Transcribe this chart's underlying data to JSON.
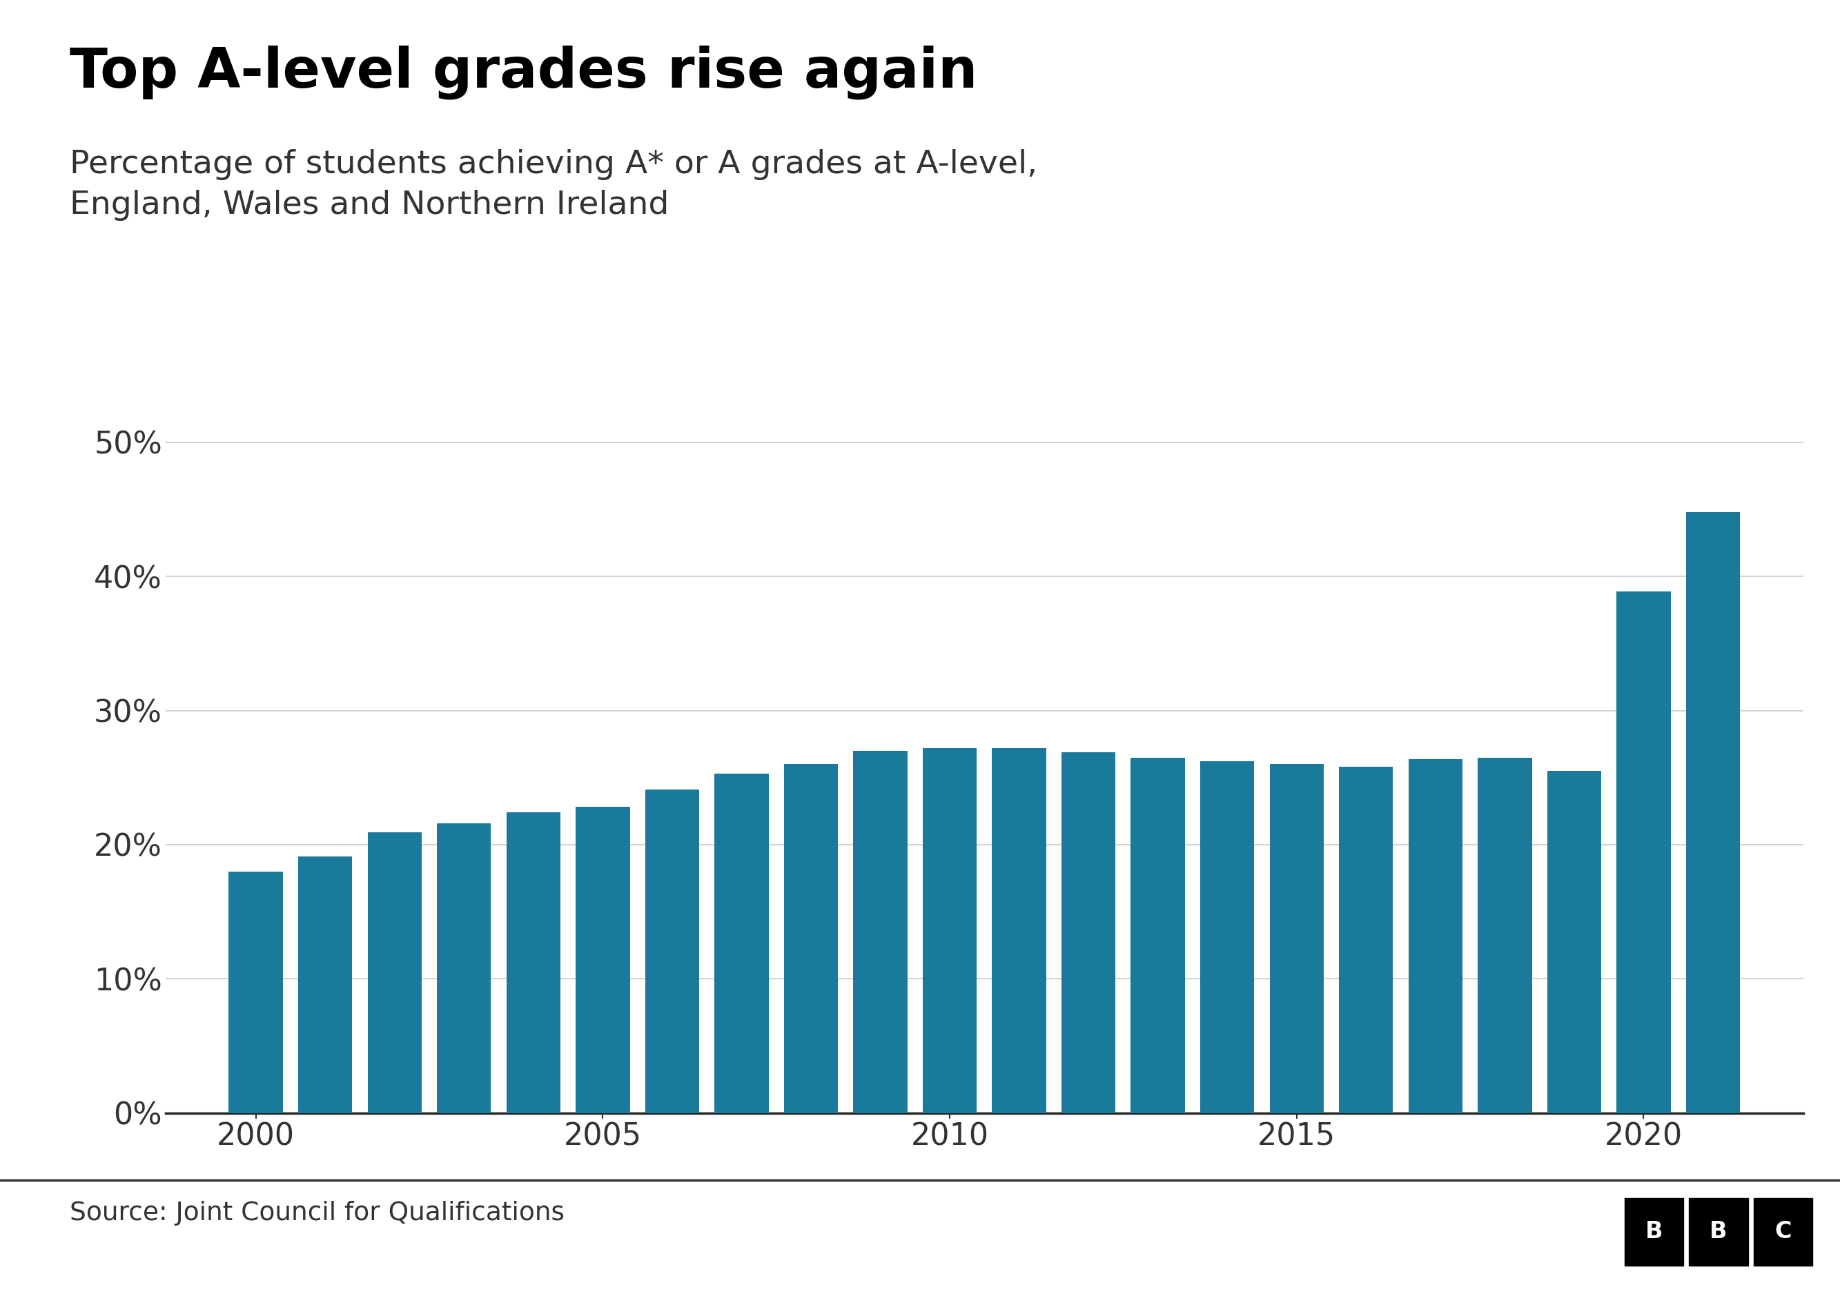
{
  "title": "Top A-level grades rise again",
  "subtitle": "Percentage of students achieving A* or A grades at A-level,\nEngland, Wales and Northern Ireland",
  "source": "Source: Joint Council for Qualifications",
  "years": [
    2000,
    2001,
    2002,
    2003,
    2004,
    2005,
    2006,
    2007,
    2008,
    2009,
    2010,
    2011,
    2012,
    2013,
    2014,
    2015,
    2016,
    2017,
    2018,
    2019,
    2020,
    2021
  ],
  "values": [
    18.0,
    19.1,
    20.9,
    21.6,
    22.4,
    22.8,
    24.1,
    25.3,
    26.0,
    27.0,
    27.2,
    27.2,
    26.9,
    26.5,
    26.2,
    26.0,
    25.8,
    26.4,
    26.5,
    25.5,
    38.9,
    44.8
  ],
  "bar_color": "#1a7a9c",
  "background_color": "#ffffff",
  "ylim": [
    0,
    55
  ],
  "yticks": [
    0,
    10,
    20,
    30,
    40,
    50
  ],
  "title_fontsize": 58,
  "subtitle_fontsize": 34,
  "source_fontsize": 27,
  "tick_fontsize": 32,
  "bar_width": 0.78
}
